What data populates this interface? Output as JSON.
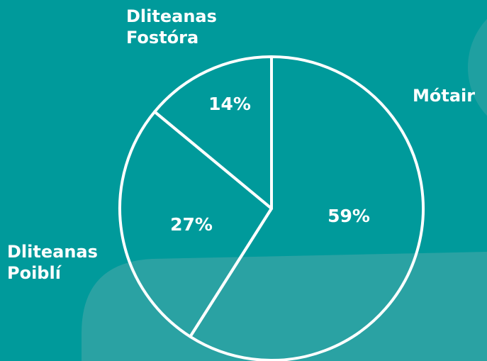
{
  "chart_data": {
    "type": "pie",
    "categories": [
      "Mótair",
      "Dliteanas Poiblí",
      "Dliteanas Fostóra"
    ],
    "values": [
      59,
      27,
      14
    ],
    "value_labels": [
      "59%",
      "27%",
      "14%"
    ],
    "stroke_color": "#ffffff"
  }
}
